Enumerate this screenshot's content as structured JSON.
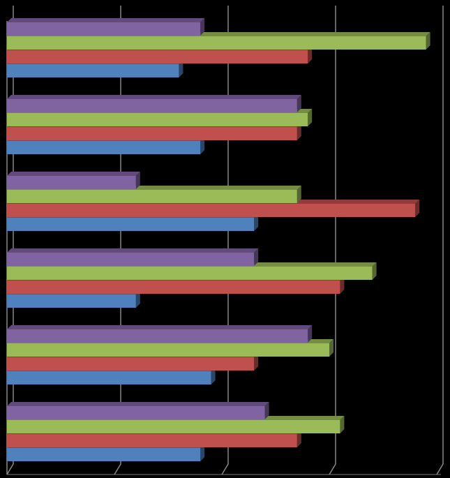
{
  "chart_data": {
    "type": "bar3d_horizontal",
    "categories": [
      null,
      null,
      null,
      null,
      null,
      null
    ],
    "series": [
      {
        "color": "#4f81bd",
        "values": [
          1.6,
          1.8,
          2.3,
          1.2,
          1.9,
          1.8
        ]
      },
      {
        "color": "#c0504d",
        "values": [
          2.8,
          2.7,
          3.8,
          3.1,
          2.3,
          2.7
        ]
      },
      {
        "color": "#9bbb59",
        "values": [
          3.9,
          2.8,
          2.7,
          3.4,
          3.0,
          3.1
        ]
      },
      {
        "color": "#8064a2",
        "values": [
          1.8,
          2.7,
          1.2,
          2.3,
          2.8,
          2.4
        ]
      }
    ],
    "xlim": [
      0,
      4
    ],
    "xticks": [
      0,
      1,
      2,
      3,
      4
    ],
    "grid": true
  }
}
